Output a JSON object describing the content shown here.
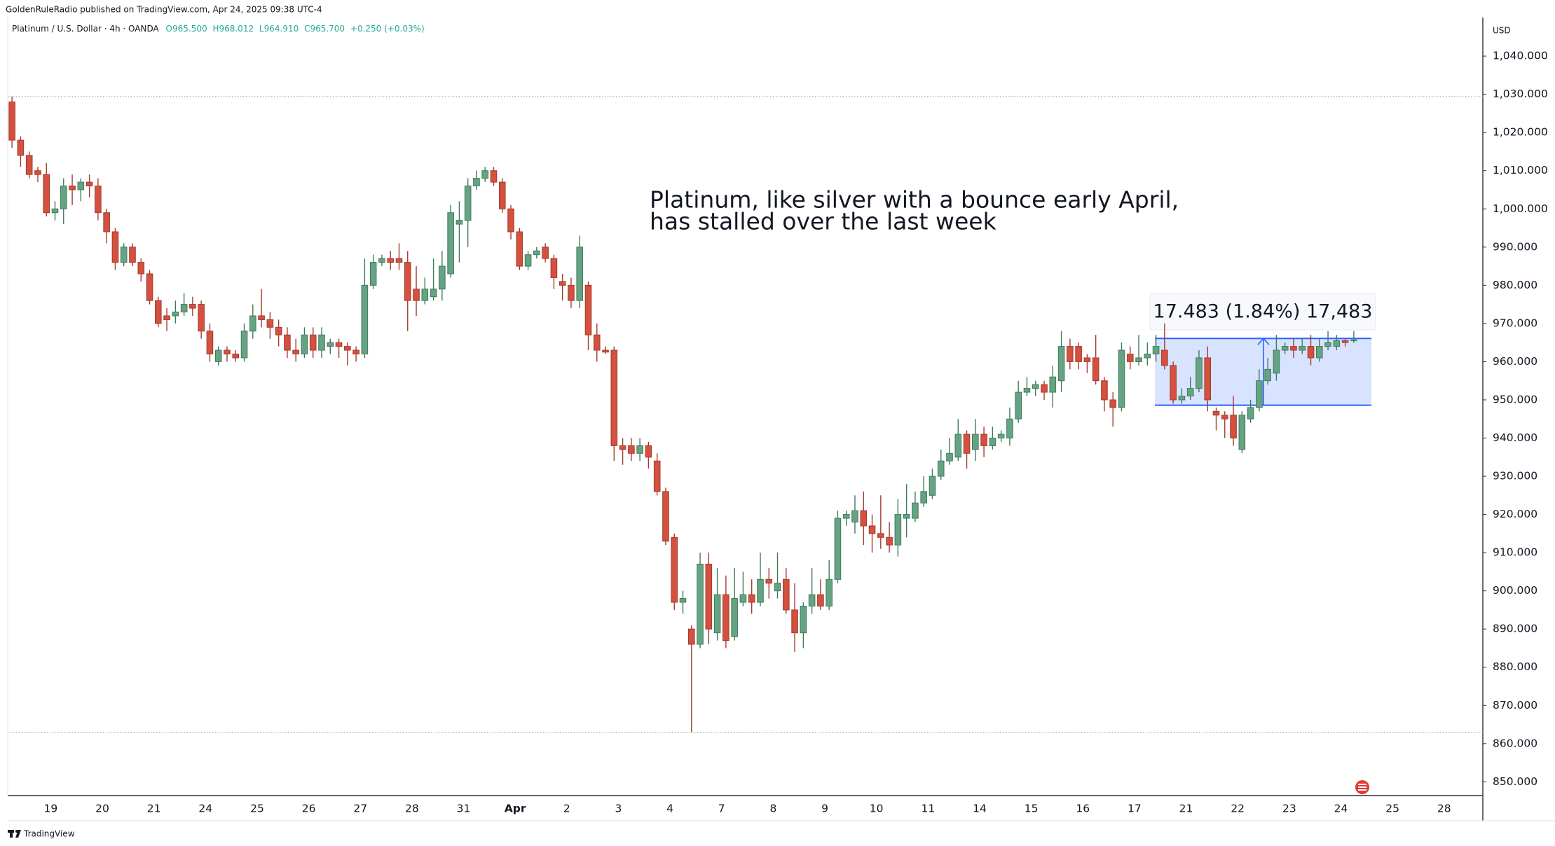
{
  "header": "GoldenRuleRadio published on TradingView.com, Apr 24, 2025 09:38 UTC-4",
  "footer": "TradingView",
  "chart_data": {
    "type": "candlestick",
    "symbol": "Platinum / U.S. Dollar · 4h · OANDA",
    "ohlc_legend": [
      "O965.500",
      "H968.012",
      "L964.910",
      "C965.700",
      "+0.250 (+0.03%)"
    ],
    "currency": "USD",
    "annotation": [
      "Platinum, like silver with a bounce early April,",
      "has stalled over the last week"
    ],
    "up_color": "#66a383",
    "down_color": "#d4503f",
    "up_wick_color": "#3f7a5c",
    "down_wick_color": "#a23b2f",
    "open": [
      1028,
      1018,
      1014,
      1010,
      1009,
      999,
      1000,
      1006,
      1005,
      1007,
      1006,
      999,
      994,
      986,
      990,
      986,
      983,
      976,
      972,
      972,
      973,
      975,
      975,
      968,
      960,
      963,
      962,
      961,
      968,
      972,
      971,
      969,
      967,
      963,
      962,
      967,
      963,
      964,
      965,
      964,
      963,
      962,
      980,
      986,
      987,
      987,
      986,
      979,
      976,
      977,
      979,
      983,
      996,
      997,
      1006,
      1008,
      1010,
      1007,
      1000,
      994,
      985,
      988,
      990,
      987,
      981,
      980,
      976,
      980,
      967,
      963,
      963,
      938,
      938,
      936,
      938,
      934,
      926,
      914,
      897,
      890,
      886,
      907,
      889,
      899,
      888,
      897,
      899,
      897,
      903,
      900,
      903,
      895,
      889,
      896,
      899,
      896,
      903,
      919,
      918,
      921,
      917,
      915,
      914,
      912,
      919,
      919,
      923,
      925,
      930,
      934,
      935,
      941,
      937,
      941,
      938,
      940,
      940,
      945,
      952,
      953,
      954,
      952,
      955,
      964,
      964,
      961,
      961,
      955,
      950,
      948,
      962,
      960,
      961,
      962,
      963,
      959,
      950,
      951,
      953,
      961,
      947,
      946,
      946,
      937,
      945,
      948,
      955,
      957,
      963,
      964,
      963,
      964,
      961,
      964,
      964,
      965.5,
      965.5
    ],
    "high": [
      1029.4,
      1019,
      1015,
      1011,
      1012,
      1002,
      1008,
      1009,
      1008,
      1009,
      1008,
      1000,
      995,
      991,
      991,
      987,
      984,
      977,
      974,
      976,
      978,
      977,
      976,
      970,
      964,
      964,
      963,
      970,
      975,
      979,
      973,
      971,
      969,
      966,
      969,
      969,
      969,
      966,
      966,
      965,
      964,
      987,
      988,
      988,
      989,
      991,
      989,
      985,
      982,
      987,
      989,
      1001,
      1002,
      1008,
      1010,
      1011,
      1011,
      1008,
      1001,
      995,
      989,
      990,
      991,
      988,
      983,
      982,
      993,
      981,
      970,
      964,
      964,
      940,
      940,
      940,
      939,
      936,
      927,
      915,
      900,
      891,
      910,
      910,
      906,
      904,
      906,
      905,
      903,
      910,
      906,
      910,
      906,
      902,
      897,
      906,
      903,
      908,
      921,
      921,
      925,
      926,
      920,
      925,
      918,
      924,
      928,
      926,
      930,
      932,
      937,
      940,
      945,
      942,
      945,
      943,
      943,
      942,
      948,
      955,
      956,
      955,
      955,
      959,
      968,
      966,
      965,
      962,
      967,
      956,
      952,
      965,
      964,
      967,
      965,
      967,
      970,
      960,
      953,
      956,
      963,
      964,
      948,
      947,
      951,
      947,
      950,
      958,
      961,
      967,
      965,
      966,
      966,
      967,
      966,
      968,
      967,
      966,
      968.012
    ],
    "low": [
      1016,
      1011,
      1008,
      1007,
      998,
      997,
      996,
      1001,
      1002,
      1003,
      997,
      991,
      984,
      985,
      985,
      981,
      975,
      969,
      968,
      970,
      972,
      972,
      966,
      960,
      959,
      960,
      960,
      960,
      966,
      969,
      966,
      964,
      961,
      960,
      961,
      961,
      961,
      962,
      961,
      959,
      960,
      961,
      979,
      985,
      984,
      984,
      968,
      972,
      975,
      976,
      976,
      982,
      986,
      990,
      1005,
      1007,
      1006,
      999,
      992,
      984,
      984,
      987,
      986,
      979,
      976,
      974,
      974,
      963,
      960,
      962,
      934,
      933,
      934,
      934,
      932,
      925,
      912,
      895,
      894,
      863,
      885,
      886,
      887,
      885,
      887,
      896,
      894,
      896,
      898,
      898,
      894,
      884,
      885,
      894,
      895,
      895,
      902,
      917,
      915,
      912,
      910,
      911,
      910,
      909,
      914,
      918,
      922,
      924,
      929,
      933,
      934,
      932,
      934,
      935,
      937,
      939,
      938,
      944,
      951,
      951,
      950,
      948,
      952,
      958,
      958,
      957,
      954,
      947,
      943,
      947,
      958,
      959,
      959,
      960,
      958,
      949,
      949,
      950,
      952,
      947,
      942,
      940,
      938,
      936,
      944,
      947,
      954,
      955,
      962,
      961,
      962,
      959,
      960,
      963,
      963,
      964,
      964.91
    ],
    "close": [
      1018,
      1014,
      1009,
      1009,
      999,
      1000,
      1006,
      1005,
      1007,
      1006,
      999,
      994,
      986,
      990,
      986,
      983,
      976,
      970,
      971,
      973,
      975,
      974,
      968,
      962,
      963,
      962,
      961,
      968,
      972,
      971,
      969,
      967,
      963,
      962,
      967,
      963,
      967,
      965,
      964,
      963,
      962,
      980,
      986,
      987,
      986,
      986,
      976,
      976,
      979,
      979,
      985,
      999,
      997,
      1006,
      1008,
      1010,
      1007,
      1000,
      994,
      985,
      988,
      989,
      987,
      982,
      980,
      976,
      990,
      967,
      963,
      962.5,
      938,
      937,
      936,
      938,
      935,
      926,
      913,
      897,
      898,
      886,
      907,
      890,
      899,
      887,
      898,
      899,
      897,
      903,
      902,
      902,
      895,
      889,
      896,
      899,
      896,
      903,
      919,
      920,
      921,
      917,
      915,
      914,
      912,
      920,
      920,
      923,
      926,
      930,
      934,
      936,
      941,
      936,
      941,
      938,
      940,
      941,
      945,
      952,
      953,
      954,
      952,
      956,
      964,
      960,
      960,
      960,
      955,
      950,
      948,
      963,
      960,
      961,
      962,
      964,
      959,
      950,
      951,
      953,
      961,
      950,
      946,
      945,
      940,
      946,
      948,
      955,
      958,
      963,
      964,
      963,
      964,
      961,
      964,
      965,
      965.5,
      965,
      965.7
    ],
    "range_lines": [
      1029.4,
      863
    ],
    "measure": {
      "label": "17.483 (1.84%) 17,483",
      "from": 948.6,
      "to": 966.083,
      "color": "#2962ff"
    },
    "xlim": [
      -0.5,
      171
    ],
    "xticks": [
      {
        "value": 4.5,
        "label": "19"
      },
      {
        "value": 10.5,
        "label": "20"
      },
      {
        "value": 16.5,
        "label": "21"
      },
      {
        "value": 22.5,
        "label": "24"
      },
      {
        "value": 28.5,
        "label": "25"
      },
      {
        "value": 34.5,
        "label": "26"
      },
      {
        "value": 40.5,
        "label": "27"
      },
      {
        "value": 46.5,
        "label": "28"
      },
      {
        "value": 52.5,
        "label": "31"
      },
      {
        "value": 58.5,
        "label": "Apr"
      },
      {
        "value": 64.5,
        "label": "2"
      },
      {
        "value": 70.5,
        "label": "3"
      },
      {
        "value": 76.5,
        "label": "4"
      },
      {
        "value": 82.5,
        "label": "7"
      },
      {
        "value": 88.5,
        "label": "8"
      },
      {
        "value": 94.5,
        "label": "9"
      },
      {
        "value": 100.5,
        "label": "10"
      },
      {
        "value": 106.5,
        "label": "11"
      },
      {
        "value": 112.5,
        "label": "14"
      },
      {
        "value": 118.5,
        "label": "15"
      },
      {
        "value": 124.5,
        "label": "16"
      },
      {
        "value": 130.5,
        "label": "17"
      },
      {
        "value": 136.5,
        "label": "21"
      },
      {
        "value": 142.5,
        "label": "22"
      },
      {
        "value": 148.5,
        "label": "23"
      },
      {
        "value": 154.5,
        "label": "24"
      },
      {
        "value": 160.5,
        "label": "25"
      },
      {
        "value": 166.5,
        "label": "28"
      }
    ],
    "ylim": [
      846.4,
      1050.1
    ],
    "yticks": [
      {
        "value": 850,
        "label": "850.000"
      },
      {
        "value": 860,
        "label": "860.000"
      },
      {
        "value": 870,
        "label": "870.000"
      },
      {
        "value": 880,
        "label": "880.000"
      },
      {
        "value": 890,
        "label": "890.000"
      },
      {
        "value": 900,
        "label": "900.000"
      },
      {
        "value": 910,
        "label": "910.000"
      },
      {
        "value": 920,
        "label": "920.000"
      },
      {
        "value": 930,
        "label": "930.000"
      },
      {
        "value": 940,
        "label": "940.000"
      },
      {
        "value": 950,
        "label": "950.000"
      },
      {
        "value": 960,
        "label": "960.000"
      },
      {
        "value": 970,
        "label": "970.000"
      },
      {
        "value": 980,
        "label": "980.000"
      },
      {
        "value": 990,
        "label": "990.000"
      },
      {
        "value": 1000,
        "label": "1,000.000"
      },
      {
        "value": 1010,
        "label": "1,010.000"
      },
      {
        "value": 1020,
        "label": "1,020.000"
      },
      {
        "value": 1030,
        "label": "1,030.000"
      },
      {
        "value": 1040,
        "label": "1,040.000"
      }
    ]
  }
}
